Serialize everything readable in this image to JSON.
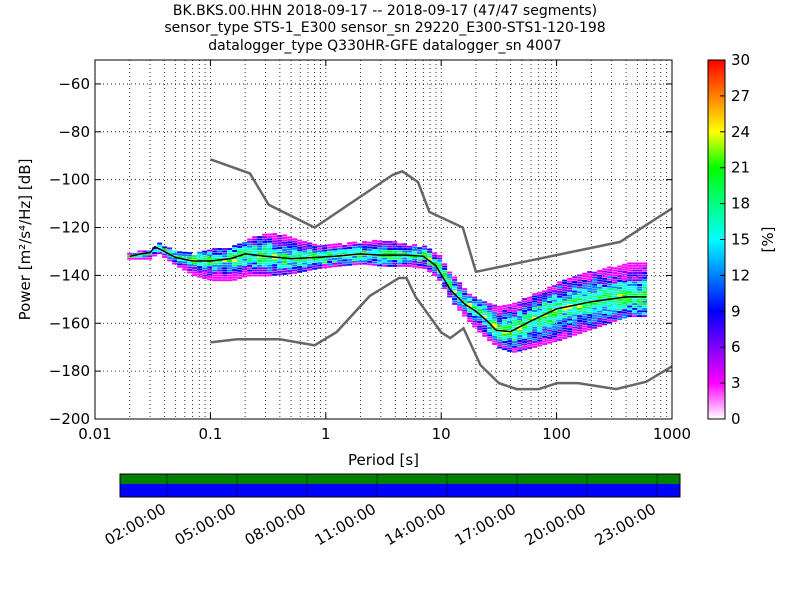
{
  "title": {
    "line1": "BK.BKS.00.HHN   2018-09-17 -- 2018-09-17  (47/47 segments)",
    "line2": "sensor_type STS-1_E300 sensor_sn 29220_E300-STS1-120-198",
    "line3": "datalogger_type Q330HR-GFE datalogger_sn 4007"
  },
  "chart_data": {
    "type": "heatmap",
    "subtype": "probabilistic power spectral density",
    "xlabel": "Period [s]",
    "ylabel": "Power [m²/s⁴/Hz] [dB]",
    "xscale": "log",
    "xlim": [
      0.01,
      1000
    ],
    "ylim": [
      -200,
      -50
    ],
    "xticks": [
      {
        "value": 0.01,
        "label": "0.01"
      },
      {
        "value": 0.1,
        "label": "0.1"
      },
      {
        "value": 1,
        "label": "1"
      },
      {
        "value": 10,
        "label": "10"
      },
      {
        "value": 100,
        "label": "100"
      },
      {
        "value": 1000,
        "label": "1000"
      }
    ],
    "yticks": [
      {
        "value": -60,
        "label": "−60"
      },
      {
        "value": -80,
        "label": "−80"
      },
      {
        "value": -100,
        "label": "−100"
      },
      {
        "value": -120,
        "label": "−120"
      },
      {
        "value": -140,
        "label": "−140"
      },
      {
        "value": -160,
        "label": "−160"
      },
      {
        "value": -180,
        "label": "−180"
      },
      {
        "value": -200,
        "label": "−200"
      }
    ],
    "grid": true,
    "colorbar": {
      "label": "[%]",
      "min": 0,
      "max": 30,
      "ticks": [
        "0",
        "3",
        "6",
        "9",
        "12",
        "15",
        "18",
        "21",
        "24",
        "27",
        "30"
      ],
      "colors": [
        "#ffffff",
        "#ff00ff",
        "#8000ff",
        "#0000ff",
        "#0080ff",
        "#00ffff",
        "#00ff80",
        "#00ff00",
        "#ffff00",
        "#ff8000",
        "#ff0000"
      ]
    },
    "noise_models": [
      {
        "name": "NHNM",
        "color": "#666666",
        "points": [
          [
            0.1,
            -91.5
          ],
          [
            0.22,
            -97.4
          ],
          [
            0.32,
            -110.5
          ],
          [
            0.8,
            -120
          ],
          [
            3.8,
            -98
          ],
          [
            4.6,
            -96.5
          ],
          [
            6.3,
            -101
          ],
          [
            7.9,
            -113.5
          ],
          [
            15.4,
            -120
          ],
          [
            20,
            -138.5
          ],
          [
            354.8,
            -126
          ],
          [
            1000,
            -112
          ]
        ]
      },
      {
        "name": "NLNM",
        "color": "#666666",
        "points": [
          [
            0.1,
            -168
          ],
          [
            0.17,
            -166.7
          ],
          [
            0.4,
            -166.7
          ],
          [
            0.8,
            -169.2
          ],
          [
            1.24,
            -163.7
          ],
          [
            2.4,
            -148.6
          ],
          [
            4.3,
            -141.1
          ],
          [
            5,
            -141.1
          ],
          [
            6,
            -149
          ],
          [
            10,
            -163.8
          ],
          [
            12,
            -166.2
          ],
          [
            15.6,
            -162.1
          ],
          [
            21.9,
            -177.5
          ],
          [
            31.6,
            -185
          ],
          [
            45,
            -187.5
          ],
          [
            70,
            -187.5
          ],
          [
            101,
            -185
          ],
          [
            154,
            -185
          ],
          [
            328,
            -187.5
          ],
          [
            600,
            -184.4
          ],
          [
            1000,
            -178
          ]
        ]
      }
    ],
    "mode_curve": {
      "color": "#000000",
      "points": [
        [
          0.02,
          -132
        ],
        [
          0.025,
          -131
        ],
        [
          0.03,
          -130.5
        ],
        [
          0.033,
          -128
        ],
        [
          0.04,
          -130
        ],
        [
          0.05,
          -132.5
        ],
        [
          0.07,
          -134
        ],
        [
          0.1,
          -134
        ],
        [
          0.15,
          -133
        ],
        [
          0.2,
          -131
        ],
        [
          0.3,
          -132
        ],
        [
          0.5,
          -133
        ],
        [
          0.8,
          -132.5
        ],
        [
          1.2,
          -132
        ],
        [
          2,
          -131
        ],
        [
          3,
          -131.5
        ],
        [
          5,
          -131.5
        ],
        [
          7,
          -132
        ],
        [
          9,
          -136
        ],
        [
          12,
          -146
        ],
        [
          16,
          -152
        ],
        [
          20,
          -155
        ],
        [
          25,
          -159
        ],
        [
          30,
          -163
        ],
        [
          40,
          -163.5
        ],
        [
          60,
          -159
        ],
        [
          100,
          -154
        ],
        [
          200,
          -151
        ],
        [
          400,
          -149
        ],
        [
          600,
          -149
        ]
      ]
    },
    "psd_bands": [
      {
        "x": [
          0.019,
          0.021,
          0.025,
          0.03,
          0.033,
          0.04,
          0.05,
          0.07,
          0.1,
          0.15,
          0.2,
          0.3,
          0.5,
          0.8,
          1.2,
          2,
          3,
          5,
          7,
          9,
          12,
          16,
          20,
          25,
          30,
          40,
          60,
          100,
          200,
          400,
          600
        ],
        "upper": [
          -131,
          -130,
          -130,
          -129,
          -126,
          -128,
          -130,
          -131,
          -129,
          -128,
          -125,
          -122,
          -124,
          -127,
          -127,
          -126,
          -125,
          -127,
          -128,
          -131,
          -140,
          -147,
          -150,
          -152,
          -153,
          -152,
          -148,
          -143,
          -138,
          -135,
          -135
        ],
        "lower": [
          -133,
          -133,
          -133,
          -133,
          -130,
          -133,
          -136,
          -140,
          -142,
          -142,
          -140,
          -140,
          -139,
          -137,
          -136,
          -135,
          -136,
          -136,
          -137,
          -141,
          -151,
          -158,
          -163,
          -167,
          -170,
          -172,
          -170,
          -167,
          -162,
          -157,
          -157
        ]
      }
    ]
  },
  "timeline": {
    "bar_colors": [
      "#008000",
      "#0000ff"
    ],
    "tick_labels": [
      "02:00:00",
      "05:00:00",
      "08:00:00",
      "11:00:00",
      "14:00:00",
      "17:00:00",
      "20:00:00",
      "23:00:00"
    ]
  }
}
